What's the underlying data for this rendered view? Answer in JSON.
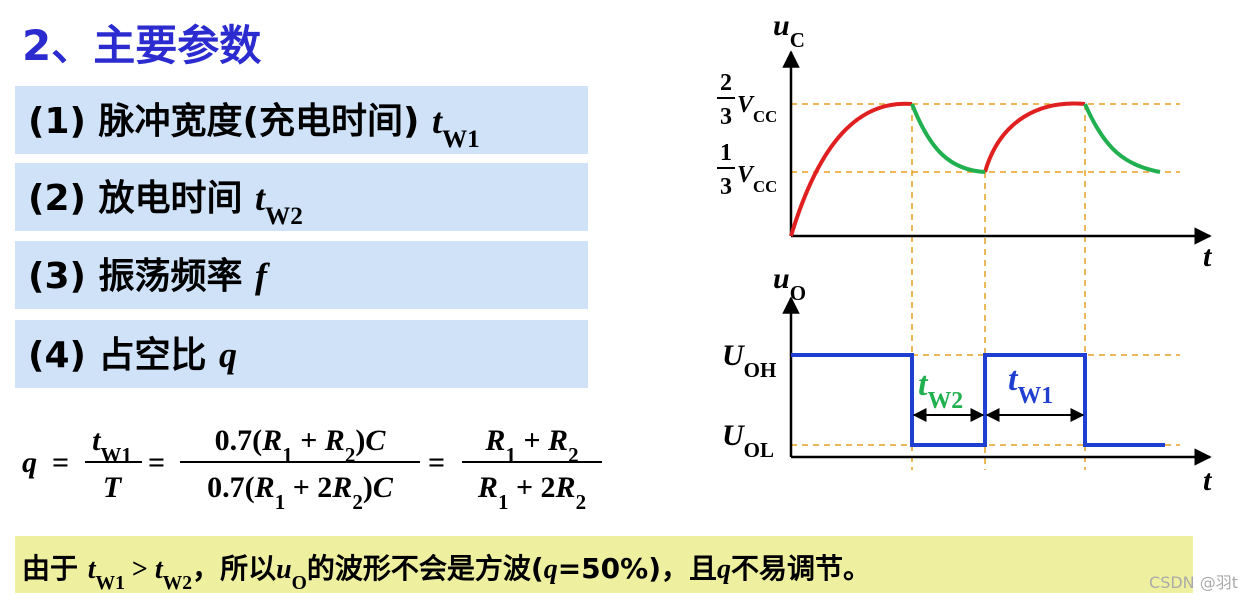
{
  "title": "2、主要参数",
  "items": [
    {
      "label": "(1) 脉冲宽度(充电时间) ",
      "var": "t",
      "sub": "W1"
    },
    {
      "label": "(2) 放电时间 ",
      "var": "t",
      "sub": "W2"
    },
    {
      "label": "(3) 振荡频率 ",
      "var": "f"
    },
    {
      "label": "(4) 占空比 ",
      "var": "q"
    }
  ],
  "formula": {
    "q": "q",
    "eq": "=",
    "frac1": {
      "num": [
        "t",
        "W1"
      ],
      "den": [
        "T"
      ]
    },
    "frac2": {
      "num": [
        "0.7(",
        "R",
        "1",
        " + ",
        "R",
        "2",
        ")",
        "C"
      ],
      "den": [
        "0.7(",
        "R",
        "1",
        " + 2",
        "R",
        "2",
        ")",
        "C"
      ]
    },
    "frac3": {
      "num": [
        "R",
        "1",
        " + ",
        "R",
        "2"
      ],
      "den": [
        "R",
        "1",
        " + 2",
        "R",
        "2"
      ]
    }
  },
  "waveform": {
    "uc": [
      "u",
      "C"
    ],
    "two_thirds": {
      "num": "2",
      "den": "3",
      "v": "V",
      "sub": "CC"
    },
    "one_third": {
      "num": "1",
      "den": "3",
      "v": "V",
      "sub": "CC"
    },
    "t": "t",
    "uo": [
      "u",
      "O"
    ],
    "uoh": [
      "U",
      "OH"
    ],
    "uol": [
      "U",
      "OL"
    ],
    "tw2": [
      "t",
      "W2"
    ],
    "tw1": [
      "t",
      "W1"
    ]
  },
  "note": [
    "由于 ",
    "t",
    "W1",
    " > ",
    "t",
    "W2",
    "，所以",
    "u",
    "O",
    "的波形不会是方波(",
    "q",
    "=50%)，且",
    "q",
    "不易调节。"
  ],
  "watermark": "CSDN @羽t"
}
